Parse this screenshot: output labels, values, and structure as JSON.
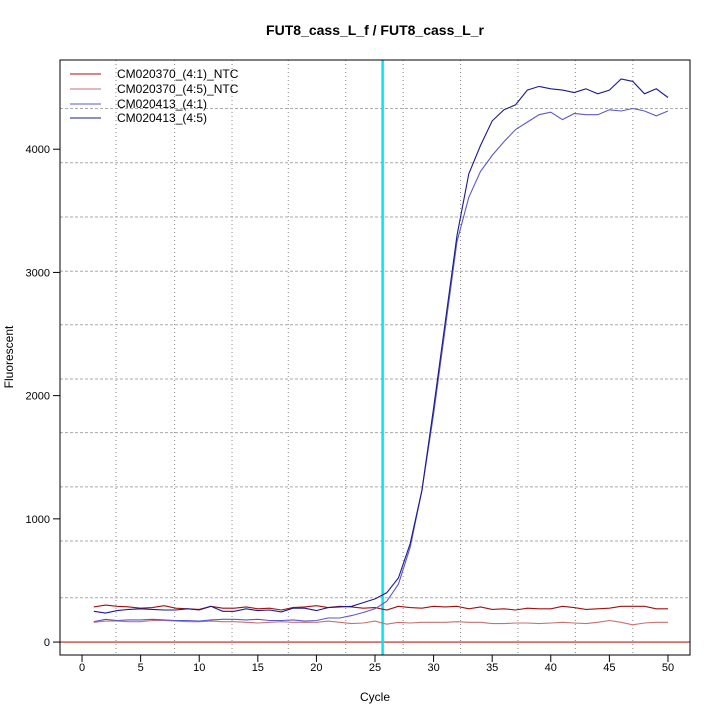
{
  "chart_data": {
    "type": "line",
    "title": "FUT8_cass_L_f / FUT8_cass_L_r",
    "xlabel": "Cycle",
    "ylabel": "Fluorescent",
    "xlim": [
      -1.88,
      51.88
    ],
    "ylim": [
      -105,
      4724
    ],
    "xticks": [
      0,
      5,
      10,
      15,
      20,
      25,
      30,
      35,
      40,
      45,
      50
    ],
    "yticks": [
      0,
      1000,
      2000,
      3000,
      4000
    ],
    "grid": true,
    "vgrid": [
      2.9,
      7.9,
      12.8,
      17.6,
      22.5,
      27.4,
      32.3,
      37.2,
      42.1,
      47.0
    ],
    "hgrid": [
      4330,
      3890,
      3450,
      3010,
      2575,
      2135,
      1700,
      1260,
      820,
      360
    ],
    "threshold_cycle": 25.65,
    "threshold_color": "#00e5ee",
    "baseline_value": 0,
    "baseline_color": "#b22222",
    "legend_position": "top-left",
    "x": [
      1,
      2,
      3,
      4,
      5,
      6,
      7,
      8,
      9,
      10,
      11,
      12,
      13,
      14,
      15,
      16,
      17,
      18,
      19,
      20,
      21,
      22,
      23,
      24,
      25,
      26,
      27,
      28,
      29,
      30,
      31,
      32,
      33,
      34,
      35,
      36,
      37,
      38,
      39,
      40,
      41,
      42,
      43,
      44,
      45,
      46,
      47,
      48,
      49,
      50
    ],
    "series": [
      {
        "name": "CM020370_(4:1)_NTC",
        "color": "#a01010",
        "values": [
          285,
          300,
          290,
          285,
          275,
          280,
          295,
          275,
          270,
          265,
          290,
          275,
          275,
          285,
          270,
          275,
          260,
          280,
          285,
          295,
          280,
          290,
          285,
          275,
          280,
          260,
          290,
          280,
          275,
          290,
          285,
          290,
          270,
          285,
          265,
          270,
          260,
          275,
          270,
          270,
          290,
          280,
          265,
          270,
          275,
          290,
          290,
          290,
          270,
          270
        ]
      },
      {
        "name": "CM020370_(4:5)_NTC",
        "color": "#c87070",
        "values": [
          160,
          170,
          170,
          165,
          165,
          175,
          175,
          170,
          165,
          165,
          170,
          165,
          165,
          160,
          155,
          160,
          165,
          160,
          160,
          160,
          170,
          160,
          150,
          155,
          170,
          145,
          160,
          155,
          160,
          160,
          160,
          165,
          160,
          160,
          150,
          150,
          155,
          155,
          150,
          155,
          160,
          155,
          150,
          160,
          175,
          160,
          140,
          155,
          160,
          160
        ]
      },
      {
        "name": "CM020413_(4:1)",
        "color": "#5a5ac8",
        "values": [
          165,
          185,
          175,
          180,
          180,
          185,
          180,
          175,
          175,
          170,
          180,
          185,
          185,
          180,
          185,
          175,
          175,
          180,
          170,
          175,
          195,
          195,
          215,
          240,
          270,
          330,
          470,
          770,
          1230,
          1850,
          2550,
          3250,
          3610,
          3820,
          3950,
          4060,
          4160,
          4220,
          4280,
          4300,
          4240,
          4290,
          4280,
          4280,
          4320,
          4310,
          4330,
          4310,
          4270,
          4310
        ]
      },
      {
        "name": "CM020413_(4:5)",
        "color": "#1a1a8c",
        "values": [
          250,
          235,
          255,
          265,
          270,
          265,
          260,
          260,
          270,
          260,
          290,
          250,
          250,
          270,
          255,
          260,
          245,
          275,
          275,
          255,
          280,
          285,
          290,
          320,
          350,
          400,
          520,
          800,
          1230,
          1900,
          2600,
          3300,
          3800,
          4030,
          4230,
          4320,
          4360,
          4480,
          4510,
          4490,
          4480,
          4460,
          4490,
          4450,
          4480,
          4570,
          4550,
          4450,
          4490,
          4420
        ]
      }
    ]
  }
}
